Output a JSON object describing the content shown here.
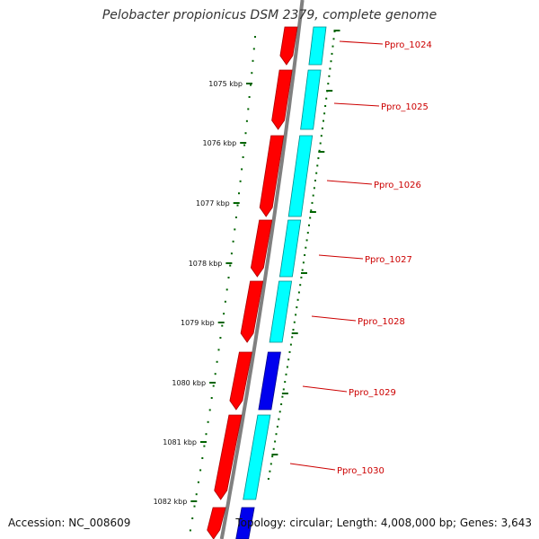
{
  "title": "Pelobacter propionicus DSM 2379, complete genome",
  "footer": {
    "accession": "Accession: NC_008609",
    "summary": "Topology: circular; Length: 4,008,000 bp; Genes: 3,643"
  },
  "kbp_ticks": [
    "1075 kbp",
    "1076 kbp",
    "1077 kbp",
    "1078 kbp",
    "1079 kbp",
    "1080 kbp",
    "1081 kbp",
    "1082 kbp"
  ],
  "genes": [
    {
      "label": "Ppro_1024"
    },
    {
      "label": "Ppro_1025"
    },
    {
      "label": "Ppro_1026"
    },
    {
      "label": "Ppro_1027"
    },
    {
      "label": "Ppro_1028"
    },
    {
      "label": "Ppro_1029"
    },
    {
      "label": "Ppro_1030"
    }
  ],
  "colors": {
    "forward_strand": "#ff0000",
    "reverse_cyan": "#00ffff",
    "reverse_blue": "#0000ee",
    "backbone": "#808080",
    "tick": "#006400",
    "label": "#cc0000"
  }
}
